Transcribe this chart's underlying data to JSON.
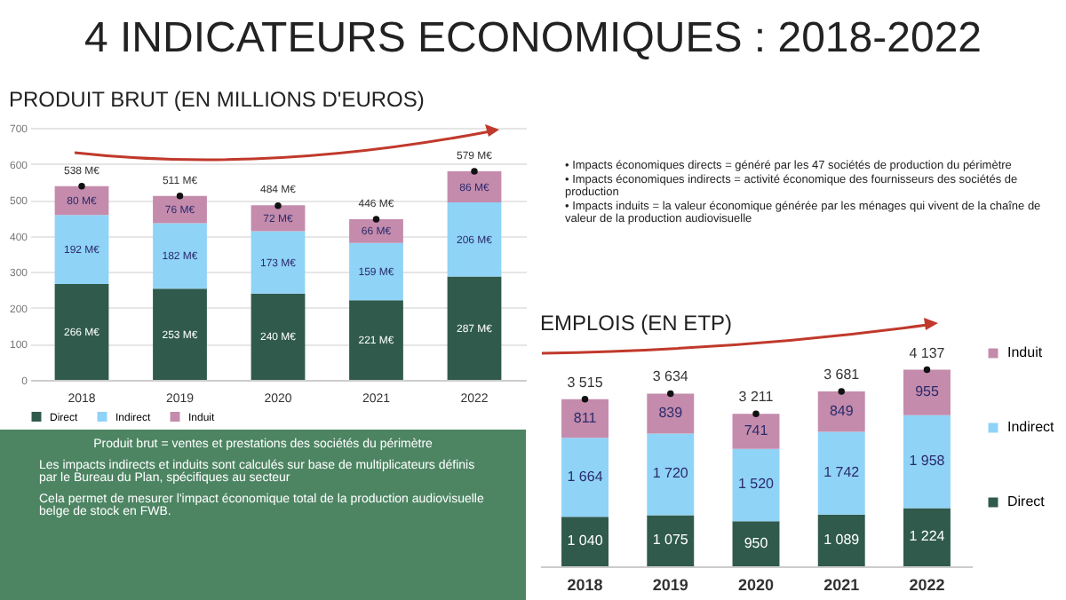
{
  "chart_data": [
    {
      "type": "bar",
      "stacked": true,
      "title": "4 INDICATEURS ECONOMIQUES : 2018-2022",
      "subtitle": "PRODUIT BRUT (EN MILLIONS D'EUROS)",
      "categories": [
        "2018",
        "2019",
        "2020",
        "2021",
        "2022"
      ],
      "series": [
        {
          "name": "Direct",
          "color": "#2f5a4c",
          "values": [
            266,
            253,
            240,
            221,
            287
          ],
          "value_labels": [
            "266 M€",
            "253 M€",
            "240 M€",
            "221 M€",
            "287 M€"
          ]
        },
        {
          "name": "Indirect",
          "color": "#8fd3f7",
          "values": [
            192,
            182,
            173,
            159,
            206
          ],
          "value_labels": [
            "192 M€",
            "182 M€",
            "173 M€",
            "159 M€",
            "206 M€"
          ]
        },
        {
          "name": "Induit",
          "color": "#c48bac",
          "values": [
            80,
            76,
            72,
            66,
            86
          ],
          "value_labels": [
            "80 M€",
            "76 M€",
            "72 M€",
            "66 M€",
            "86 M€"
          ]
        },
        {
          "type": "scatter",
          "color": "#111111",
          "values": [
            538,
            511,
            484,
            446,
            579
          ]
        }
      ],
      "totals": [
        "538 M€",
        "511 M€",
        "484 M€",
        "446 M€",
        "579 M€"
      ],
      "ylim": [
        0,
        700
      ],
      "yticks": [
        0,
        100,
        200,
        300,
        400,
        500,
        600,
        700
      ],
      "grid": "y",
      "legend": "bottom",
      "annotations": [
        "• Impacts économiques directs = généré par les 47 sociétés de production du périmètre",
        "• Impacts économiques indirects = activité économique des fournisseurs des sociétés de production",
        "• Impacts induits = la valeur économique générée par les ménages qui vivent de la chaîne de valeur de la production audiovisuelle",
        "Produit brut = ventes et prestations des sociétés du périmètre",
        "Les impacts indirects et induits sont calculés sur base de multiplicateurs définis par le Bureau du Plan, spécifiques au secteur",
        "Cela permet de mesurer l'impact économique total de la production audiovisuelle belge de stock en FWB."
      ]
    },
    {
      "type": "bar",
      "stacked": true,
      "title": "EMPLOIS (EN ETP)",
      "categories": [
        "2018",
        "2019",
        "2020",
        "2021",
        "2022"
      ],
      "series": [
        {
          "name": "Direct",
          "color": "#2f5a4c",
          "values": [
            1040,
            1075,
            950,
            1089,
            1224
          ],
          "value_labels": [
            "1 040",
            "1 075",
            "950",
            "1 089",
            "1 224"
          ]
        },
        {
          "name": "Indirect",
          "color": "#8fd3f7",
          "values": [
            1664,
            1720,
            1520,
            1742,
            1958
          ],
          "value_labels": [
            "1 664",
            "1 720",
            "1 520",
            "1 742",
            "1 958"
          ]
        },
        {
          "name": "Induit",
          "color": "#c48bac",
          "values": [
            811,
            839,
            741,
            849,
            955
          ],
          "value_labels": [
            "811",
            "839",
            "741",
            "849",
            "955"
          ]
        },
        {
          "type": "scatter",
          "color": "#111111",
          "values": [
            3515,
            3634,
            3211,
            3681,
            4137
          ]
        }
      ],
      "totals": [
        "3 515",
        "3 634",
        "3 211",
        "3 681",
        "4 137"
      ],
      "tick_labels": "x",
      "legend": "right"
    }
  ]
}
